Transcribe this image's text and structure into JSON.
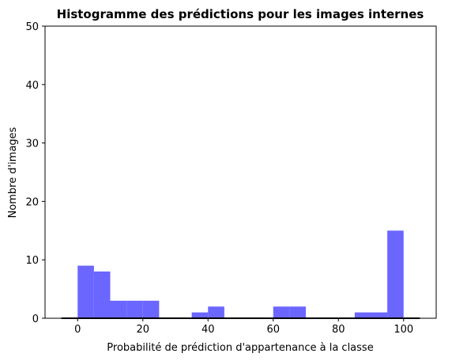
{
  "chart_data": {
    "type": "bar",
    "title": "Histogramme des prédictions pour les images internes",
    "xlabel": "Probabilité de prédiction d'appartenance à la classe",
    "ylabel": "Nombre d'images",
    "xlim": [
      -10,
      110
    ],
    "ylim": [
      0,
      50
    ],
    "xticks": [
      "0",
      "20",
      "40",
      "60",
      "80",
      "100"
    ],
    "yticks": [
      "0",
      "10",
      "20",
      "30",
      "40",
      "50"
    ],
    "bin_edges": [
      0,
      5,
      10,
      15,
      20,
      25,
      30,
      35,
      40,
      45,
      50,
      55,
      60,
      65,
      70,
      75,
      80,
      85,
      90,
      95,
      100
    ],
    "counts": [
      9,
      8,
      3,
      3,
      3,
      0,
      0,
      1,
      2,
      0,
      0,
      0,
      2,
      2,
      0,
      0,
      0,
      1,
      1,
      15
    ],
    "bar_color": "#6b66ff",
    "baseline": {
      "x": [
        -5,
        105
      ],
      "y": 0,
      "color": "#000000"
    },
    "grid": false,
    "legend": "none"
  }
}
